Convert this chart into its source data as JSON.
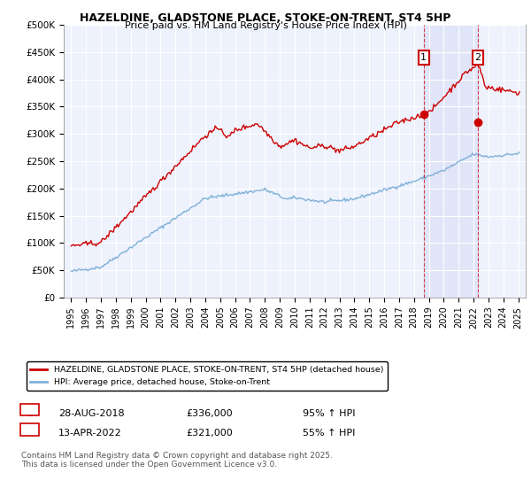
{
  "title": "HAZELDINE, GLADSTONE PLACE, STOKE-ON-TRENT, ST4 5HP",
  "subtitle": "Price paid vs. HM Land Registry's House Price Index (HPI)",
  "legend_line1": "HAZELDINE, GLADSTONE PLACE, STOKE-ON-TRENT, ST4 5HP (detached house)",
  "legend_line2": "HPI: Average price, detached house, Stoke-on-Trent",
  "annotation1_label": "1",
  "annotation1_date": "28-AUG-2018",
  "annotation1_price": "£336,000",
  "annotation1_hpi": "95% ↑ HPI",
  "annotation1_year": 2018.66,
  "annotation1_value": 336000,
  "annotation2_label": "2",
  "annotation2_date": "13-APR-2022",
  "annotation2_price": "£321,000",
  "annotation2_hpi": "55% ↑ HPI",
  "annotation2_year": 2022.29,
  "annotation2_value": 321000,
  "footer": "Contains HM Land Registry data © Crown copyright and database right 2025.\nThis data is licensed under the Open Government Licence v3.0.",
  "red_color": "#cc0000",
  "blue_color": "#7fb0d8",
  "background_color": "#eef2fc",
  "annotation_box_color": "#cc0000",
  "ylim": [
    0,
    500000
  ],
  "xlim_start": 1994.5,
  "xlim_end": 2025.5,
  "yticks": [
    0,
    50000,
    100000,
    150000,
    200000,
    250000,
    300000,
    350000,
    400000,
    450000,
    500000
  ],
  "ytick_labels": [
    "£0",
    "£50K",
    "£100K",
    "£150K",
    "£200K",
    "£250K",
    "£300K",
    "£350K",
    "£400K",
    "£450K",
    "£500K"
  ],
  "xticks": [
    1995,
    1996,
    1997,
    1998,
    1999,
    2000,
    2001,
    2002,
    2003,
    2004,
    2005,
    2006,
    2007,
    2008,
    2009,
    2010,
    2011,
    2012,
    2013,
    2014,
    2015,
    2016,
    2017,
    2018,
    2019,
    2020,
    2021,
    2022,
    2023,
    2024,
    2025
  ]
}
